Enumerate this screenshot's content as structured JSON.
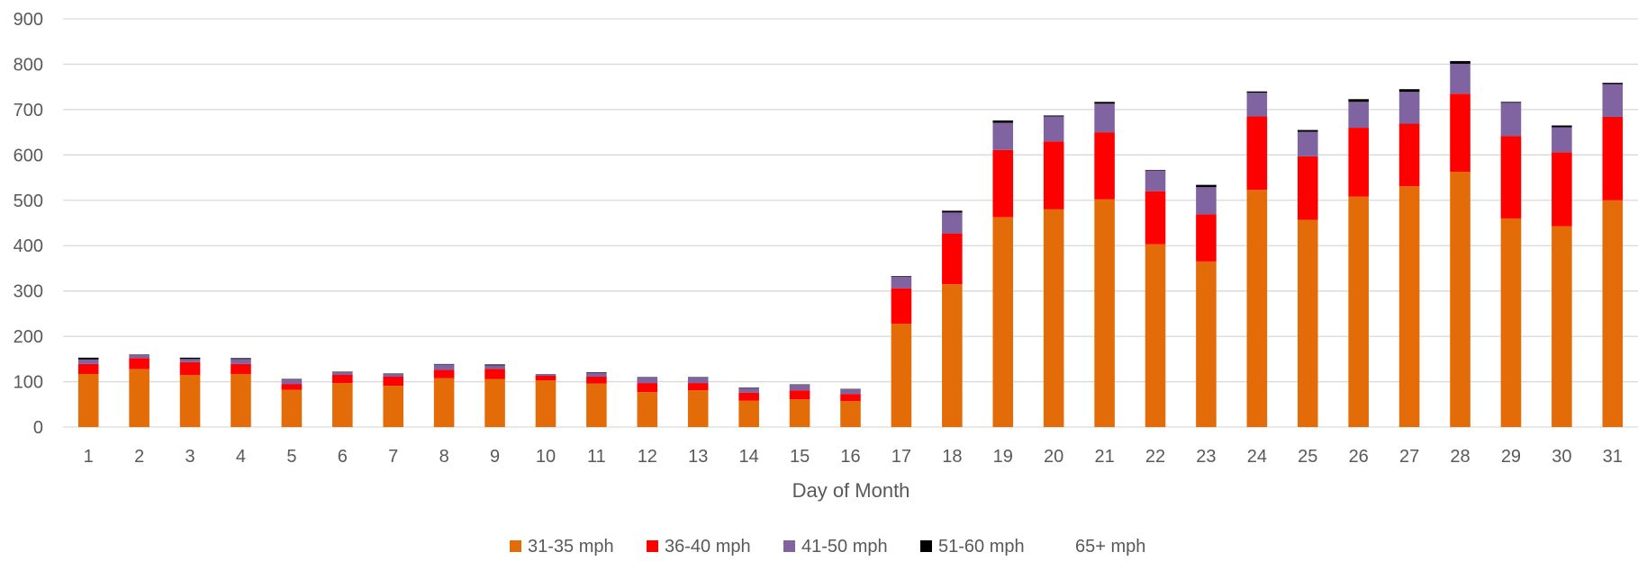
{
  "chart_data": {
    "type": "bar",
    "stacked": true,
    "xlabel": "Day of Month",
    "ylabel": "",
    "ylim": [
      0,
      900
    ],
    "yticks": [
      0,
      100,
      200,
      300,
      400,
      500,
      600,
      700,
      800,
      900
    ],
    "grid": true,
    "legend_position": "bottom",
    "categories": [
      "1",
      "2",
      "3",
      "4",
      "5",
      "6",
      "7",
      "8",
      "9",
      "10",
      "11",
      "12",
      "13",
      "14",
      "15",
      "16",
      "17",
      "18",
      "19",
      "20",
      "21",
      "22",
      "23",
      "24",
      "25",
      "26",
      "27",
      "28",
      "29",
      "30",
      "31"
    ],
    "series": [
      {
        "name": "31-35 mph",
        "color": "#E36C09",
        "values": [
          117,
          128,
          115,
          117,
          82,
          97,
          91,
          108,
          106,
          103,
          96,
          77,
          81,
          58,
          61,
          57,
          228,
          315,
          463,
          480,
          502,
          403,
          365,
          523,
          457,
          508,
          531,
          563,
          460,
          443,
          500
        ]
      },
      {
        "name": "36-40 mph",
        "color": "#FF0000",
        "values": [
          22,
          24,
          28,
          22,
          13,
          18,
          20,
          18,
          22,
          10,
          15,
          20,
          16,
          18,
          20,
          16,
          78,
          112,
          148,
          150,
          148,
          117,
          104,
          162,
          140,
          152,
          138,
          172,
          182,
          163,
          184
        ]
      },
      {
        "name": "41-50 mph",
        "color": "#8064A2",
        "values": [
          10,
          7,
          7,
          11,
          10,
          6,
          6,
          12,
          8,
          4,
          9,
          12,
          12,
          10,
          12,
          10,
          26,
          46,
          60,
          55,
          63,
          46,
          60,
          52,
          54,
          57,
          70,
          66,
          73,
          55,
          72
        ]
      },
      {
        "name": "51-60 mph",
        "color": "#000000",
        "values": [
          4,
          1,
          3,
          2,
          1,
          1,
          1,
          1,
          2,
          0,
          1,
          1,
          1,
          1,
          1,
          1,
          1,
          4,
          5,
          2,
          4,
          1,
          5,
          3,
          4,
          6,
          6,
          6,
          2,
          4,
          3
        ]
      },
      {
        "name": "65+ mph",
        "color": "#ffffff",
        "values": [
          0,
          0,
          0,
          0,
          0,
          0,
          0,
          0,
          0,
          0,
          0,
          0,
          0,
          0,
          0,
          0,
          0,
          0,
          0,
          0,
          0,
          0,
          0,
          0,
          0,
          0,
          0,
          0,
          0,
          0,
          0
        ]
      }
    ]
  }
}
